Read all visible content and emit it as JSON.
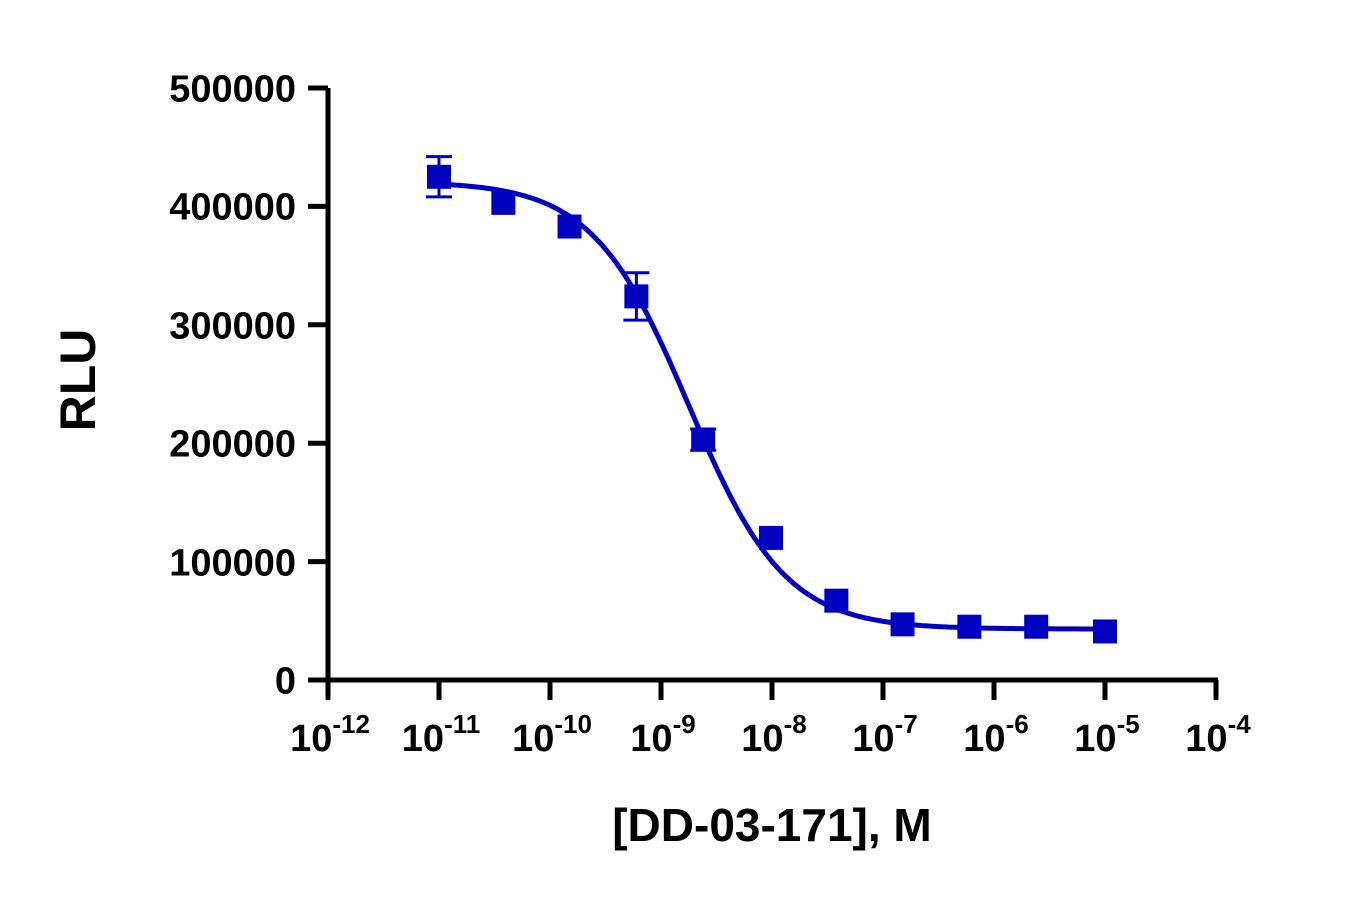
{
  "chart_data": {
    "type": "scatter",
    "title": "",
    "xlabel": "[DD-03-171], M",
    "ylabel": "RLU",
    "xscale": "log",
    "xlim": [
      1e-12,
      0.0001
    ],
    "ylim": [
      0,
      500000
    ],
    "grid": false,
    "legend": null,
    "x_ticks": [
      "10^-12",
      "10^-11",
      "10^-10",
      "10^-9",
      "10^-8",
      "10^-7",
      "10^-6",
      "10^-5",
      "10^-4"
    ],
    "y_ticks": [
      "0",
      "100000",
      "200000",
      "300000",
      "400000",
      "500000"
    ],
    "color": "#0000C0",
    "marker": "square",
    "fit": "4-parameter logistic (sigmoidal dose-response)",
    "series": [
      {
        "name": "DD-03-171",
        "x": [
          1e-11,
          3.8e-11,
          1.5e-10,
          6e-10,
          2.4e-09,
          9.8e-09,
          3.8e-08,
          1.5e-07,
          6e-07,
          2.4e-06,
          1e-05
        ],
        "y": [
          425000,
          403000,
          383000,
          324000,
          203000,
          120000,
          67000,
          47000,
          45000,
          45000,
          41000
        ],
        "error": [
          17000,
          0,
          0,
          20000,
          9000,
          0,
          0,
          0,
          0,
          0,
          0
        ]
      }
    ]
  },
  "axes": {
    "xlabel": "[DD-03-171], M",
    "ylabel": "RLU",
    "y_ticks": [
      {
        "label": "0",
        "value": 0
      },
      {
        "label": "100000",
        "value": 100000
      },
      {
        "label": "200000",
        "value": 200000
      },
      {
        "label": "300000",
        "value": 300000
      },
      {
        "label": "400000",
        "value": 400000
      },
      {
        "label": "500000",
        "value": 500000
      }
    ],
    "x_ticks": [
      {
        "base": "10",
        "exp": "-12"
      },
      {
        "base": "10",
        "exp": "-11"
      },
      {
        "base": "10",
        "exp": "-10"
      },
      {
        "base": "10",
        "exp": "-9"
      },
      {
        "base": "10",
        "exp": "-8"
      },
      {
        "base": "10",
        "exp": "-7"
      },
      {
        "base": "10",
        "exp": "-6"
      },
      {
        "base": "10",
        "exp": "-5"
      },
      {
        "base": "10",
        "exp": "-4"
      }
    ]
  }
}
